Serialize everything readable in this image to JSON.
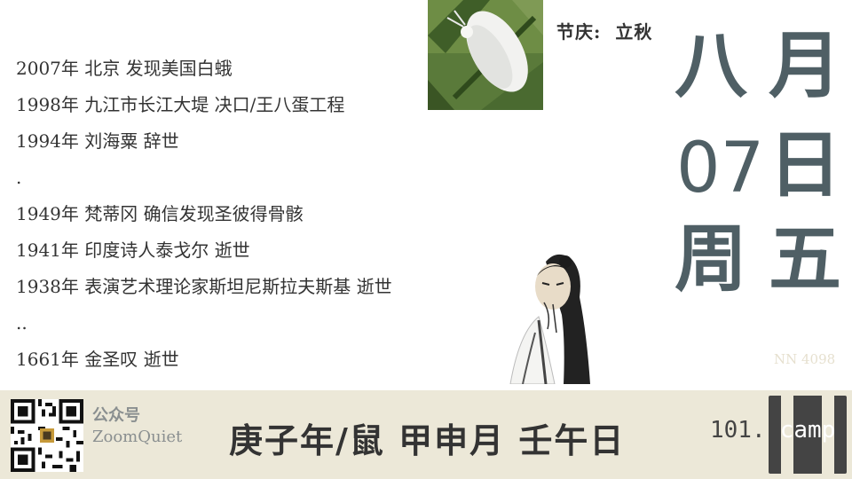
{
  "events": [
    "2007年 北京 发现美国白蛾",
    "1998年 九江市长江大堤 决口/王八蛋工程",
    "1994年 刘海粟 辞世",
    ".",
    "1949年 梵蒂冈 确信发现圣彼得骨骸",
    "1941年 印度诗人泰戈尔 逝世",
    "1938年 表演艺术理论家斯坦尼斯拉夫斯基 逝世",
    "..",
    "1661年 金圣叹 逝世"
  ],
  "festival": {
    "label": "节庆:",
    "value": "立秋"
  },
  "date": {
    "month_char": "八",
    "month_label": "月",
    "day_number": "07",
    "day_label": "日",
    "week_label": "周",
    "week_day": "五"
  },
  "serial": "NN 4098",
  "footer": {
    "account_label": "公众号",
    "account_name": "ZoomQuiet",
    "ganzhi": "庚子年/鼠 甲申月 壬午日",
    "brand_prefix": "101.",
    "brand_text": "camp"
  },
  "colors": {
    "date_text": "#4f5f65",
    "footer_bg": "#ece8d8",
    "serial_text": "#e6e0cf"
  },
  "icons": {
    "moth_photo": "white-moth-photo",
    "sage_portrait": "sage-portrait",
    "qr_code": "qr-code",
    "brand_logo": "101camp-logo"
  }
}
